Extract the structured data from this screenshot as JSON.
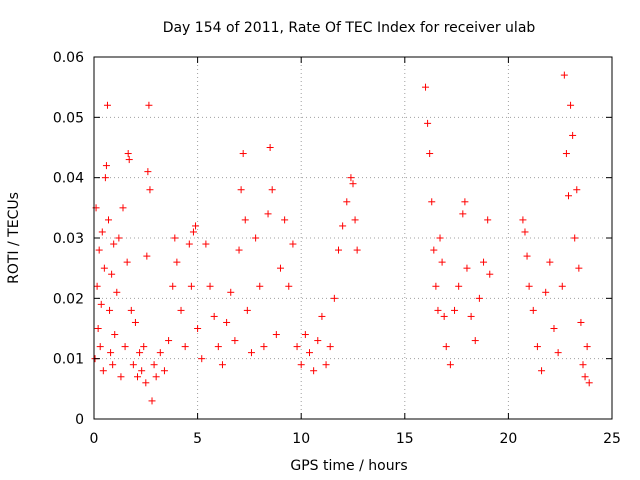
{
  "chart_data": {
    "type": "scatter",
    "title": "Day 154 of 2011, Rate Of TEC Index for receiver ulab",
    "xlabel": "GPS time / hours",
    "ylabel": "ROTI / TECUs",
    "xlim": [
      0,
      25
    ],
    "ylim": [
      0,
      0.06
    ],
    "xticks": [
      0,
      5,
      10,
      15,
      20,
      25
    ],
    "xtick_labels": [
      "0",
      "5",
      "10",
      "15",
      "20",
      "25"
    ],
    "yticks": [
      0,
      0.01,
      0.02,
      0.03,
      0.04,
      0.05,
      0.06
    ],
    "ytick_labels": [
      "0",
      "0.01",
      "0.02",
      "0.03",
      "0.04",
      "0.05",
      "0.06"
    ],
    "grid": true,
    "marker": "+",
    "color": "#ff0000",
    "series": [
      {
        "points": [
          [
            0.05,
            0.01
          ],
          [
            0.1,
            0.035
          ],
          [
            0.15,
            0.022
          ],
          [
            0.2,
            0.015
          ],
          [
            0.25,
            0.028
          ],
          [
            0.3,
            0.012
          ],
          [
            0.35,
            0.019
          ],
          [
            0.4,
            0.031
          ],
          [
            0.45,
            0.008
          ],
          [
            0.5,
            0.025
          ],
          [
            0.55,
            0.04
          ],
          [
            0.6,
            0.042
          ],
          [
            0.65,
            0.052
          ],
          [
            0.7,
            0.033
          ],
          [
            0.75,
            0.018
          ],
          [
            0.8,
            0.011
          ],
          [
            0.85,
            0.024
          ],
          [
            0.9,
            0.009
          ],
          [
            0.95,
            0.029
          ],
          [
            1.0,
            0.014
          ],
          [
            1.1,
            0.021
          ],
          [
            1.2,
            0.03
          ],
          [
            1.3,
            0.007
          ],
          [
            1.4,
            0.035
          ],
          [
            1.5,
            0.012
          ],
          [
            1.6,
            0.026
          ],
          [
            1.65,
            0.044
          ],
          [
            1.7,
            0.043
          ],
          [
            1.8,
            0.018
          ],
          [
            1.9,
            0.009
          ],
          [
            2.0,
            0.016
          ],
          [
            2.1,
            0.007
          ],
          [
            2.2,
            0.011
          ],
          [
            2.3,
            0.008
          ],
          [
            2.4,
            0.012
          ],
          [
            2.5,
            0.006
          ],
          [
            2.55,
            0.027
          ],
          [
            2.6,
            0.041
          ],
          [
            2.65,
            0.052
          ],
          [
            2.7,
            0.038
          ],
          [
            2.8,
            0.003
          ],
          [
            2.9,
            0.009
          ],
          [
            3.0,
            0.007
          ],
          [
            3.2,
            0.011
          ],
          [
            3.4,
            0.008
          ],
          [
            3.6,
            0.013
          ],
          [
            3.8,
            0.022
          ],
          [
            3.9,
            0.03
          ],
          [
            4.0,
            0.026
          ],
          [
            4.2,
            0.018
          ],
          [
            4.4,
            0.012
          ],
          [
            4.6,
            0.029
          ],
          [
            4.7,
            0.022
          ],
          [
            4.8,
            0.031
          ],
          [
            4.9,
            0.032
          ],
          [
            5.0,
            0.015
          ],
          [
            5.2,
            0.01
          ],
          [
            5.4,
            0.029
          ],
          [
            5.6,
            0.022
          ],
          [
            5.8,
            0.017
          ],
          [
            6.0,
            0.012
          ],
          [
            6.2,
            0.009
          ],
          [
            6.4,
            0.016
          ],
          [
            6.6,
            0.021
          ],
          [
            6.8,
            0.013
          ],
          [
            7.0,
            0.028
          ],
          [
            7.1,
            0.038
          ],
          [
            7.2,
            0.044
          ],
          [
            7.3,
            0.033
          ],
          [
            7.4,
            0.018
          ],
          [
            7.6,
            0.011
          ],
          [
            7.8,
            0.03
          ],
          [
            8.0,
            0.022
          ],
          [
            8.2,
            0.012
          ],
          [
            8.4,
            0.034
          ],
          [
            8.5,
            0.045
          ],
          [
            8.6,
            0.038
          ],
          [
            8.8,
            0.014
          ],
          [
            9.0,
            0.025
          ],
          [
            9.2,
            0.033
          ],
          [
            9.4,
            0.022
          ],
          [
            9.6,
            0.029
          ],
          [
            9.8,
            0.012
          ],
          [
            10.0,
            0.009
          ],
          [
            10.2,
            0.014
          ],
          [
            10.4,
            0.011
          ],
          [
            10.6,
            0.008
          ],
          [
            10.8,
            0.013
          ],
          [
            11.0,
            0.017
          ],
          [
            11.2,
            0.009
          ],
          [
            11.4,
            0.012
          ],
          [
            11.6,
            0.02
          ],
          [
            11.8,
            0.028
          ],
          [
            12.0,
            0.032
          ],
          [
            12.2,
            0.036
          ],
          [
            12.4,
            0.04
          ],
          [
            12.5,
            0.039
          ],
          [
            12.6,
            0.033
          ],
          [
            12.7,
            0.028
          ],
          [
            16.0,
            0.055
          ],
          [
            16.1,
            0.049
          ],
          [
            16.2,
            0.044
          ],
          [
            16.3,
            0.036
          ],
          [
            16.4,
            0.028
          ],
          [
            16.5,
            0.022
          ],
          [
            16.6,
            0.018
          ],
          [
            16.7,
            0.03
          ],
          [
            16.8,
            0.026
          ],
          [
            16.9,
            0.017
          ],
          [
            17.0,
            0.012
          ],
          [
            17.2,
            0.009
          ],
          [
            17.4,
            0.018
          ],
          [
            17.6,
            0.022
          ],
          [
            17.8,
            0.034
          ],
          [
            17.9,
            0.036
          ],
          [
            18.0,
            0.025
          ],
          [
            18.2,
            0.017
          ],
          [
            18.4,
            0.013
          ],
          [
            18.6,
            0.02
          ],
          [
            18.8,
            0.026
          ],
          [
            19.0,
            0.033
          ],
          [
            19.1,
            0.024
          ],
          [
            20.7,
            0.033
          ],
          [
            20.8,
            0.031
          ],
          [
            20.9,
            0.027
          ],
          [
            21.0,
            0.022
          ],
          [
            21.2,
            0.018
          ],
          [
            21.4,
            0.012
          ],
          [
            21.6,
            0.008
          ],
          [
            21.8,
            0.021
          ],
          [
            22.0,
            0.026
          ],
          [
            22.2,
            0.015
          ],
          [
            22.4,
            0.011
          ],
          [
            22.6,
            0.022
          ],
          [
            22.7,
            0.057
          ],
          [
            22.8,
            0.044
          ],
          [
            22.9,
            0.037
          ],
          [
            23.0,
            0.052
          ],
          [
            23.1,
            0.047
          ],
          [
            23.2,
            0.03
          ],
          [
            23.3,
            0.038
          ],
          [
            23.4,
            0.025
          ],
          [
            23.5,
            0.016
          ],
          [
            23.6,
            0.009
          ],
          [
            23.7,
            0.007
          ],
          [
            23.8,
            0.012
          ],
          [
            23.9,
            0.006
          ]
        ]
      }
    ]
  }
}
